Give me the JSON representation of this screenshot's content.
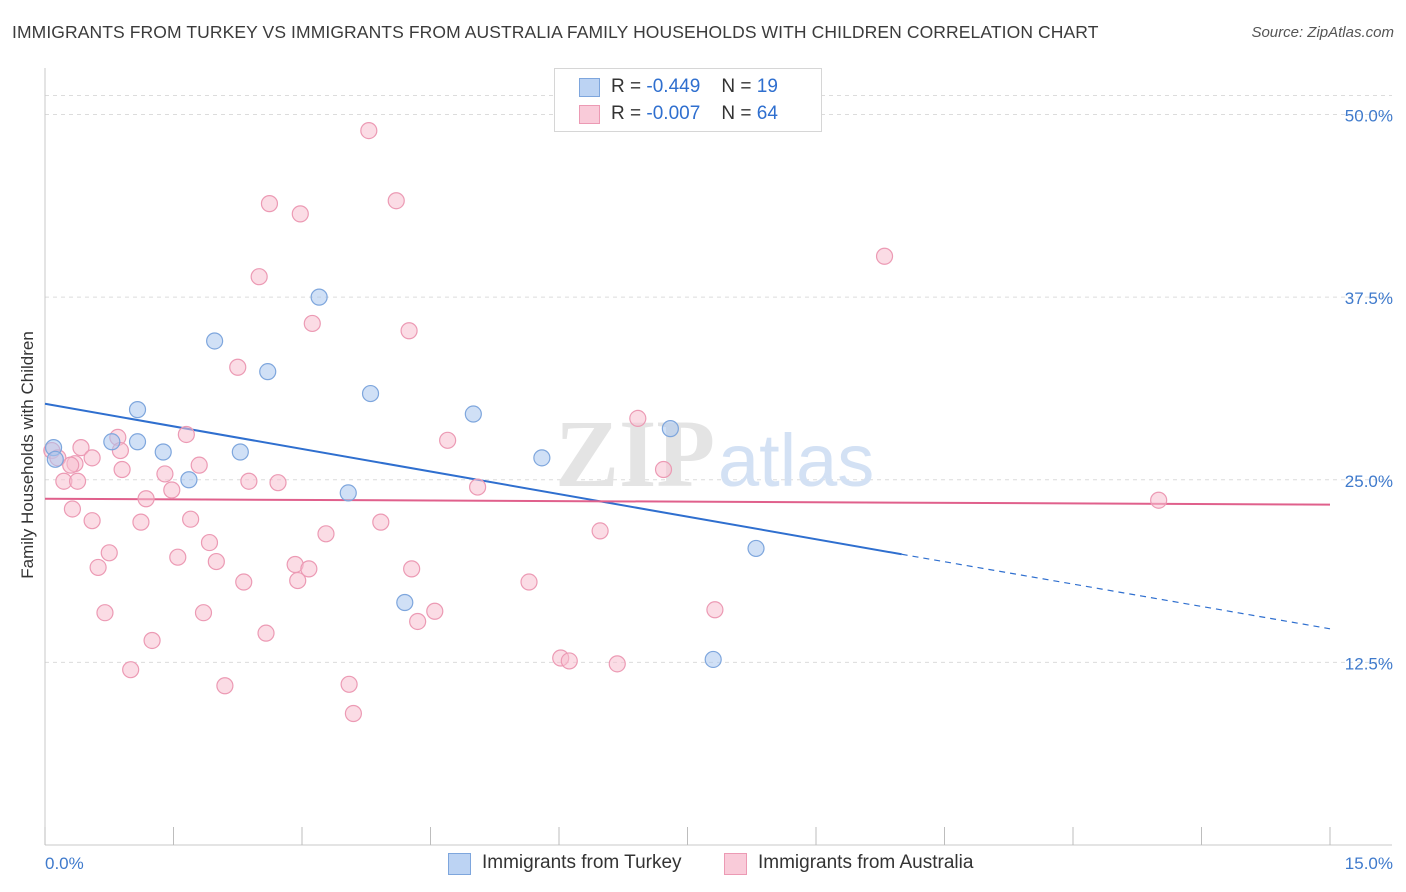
{
  "title": "IMMIGRANTS FROM TURKEY VS IMMIGRANTS FROM AUSTRALIA FAMILY HOUSEHOLDS WITH CHILDREN CORRELATION CHART",
  "source": "Source: ZipAtlas.com",
  "watermark": "ZIPatlas",
  "legend": {
    "r_label": "R =",
    "n_label": "N =",
    "turkey": {
      "r": "-0.449",
      "n": "19"
    },
    "australia": {
      "r": "-0.007",
      "n": "64"
    }
  },
  "chart_data": {
    "type": "scatter",
    "xlabel": "",
    "ylabel": "Family Households with Children",
    "xlim": [
      0,
      15
    ],
    "ylim": [
      0,
      52.5
    ],
    "x_tick_labels": [
      "0.0%",
      "15.0%"
    ],
    "y_ticks": [
      12.5,
      25.0,
      37.5,
      50.0
    ],
    "y_tick_labels": [
      "12.5%",
      "25.0%",
      "37.5%",
      "50.0%"
    ],
    "grid": true,
    "series": [
      {
        "name": "Immigrants from Turkey",
        "color": "#a9c6ee",
        "stroke": "#7ea6dd",
        "line_color": "#2f6fcf",
        "trend": {
          "x0": 0,
          "y0": 30.2,
          "x1": 10.0,
          "y1": 19.9,
          "dash_to_x": 15,
          "dash_to_y": 14.8
        },
        "points": [
          [
            0.1,
            27.2
          ],
          [
            0.78,
            27.6
          ],
          [
            1.08,
            27.6
          ],
          [
            1.08,
            29.8
          ],
          [
            1.38,
            26.9
          ],
          [
            1.68,
            25.0
          ],
          [
            1.98,
            34.5
          ],
          [
            2.28,
            26.9
          ],
          [
            2.6,
            32.4
          ],
          [
            3.2,
            37.5
          ],
          [
            3.54,
            24.1
          ],
          [
            3.8,
            30.9
          ],
          [
            4.2,
            16.6
          ],
          [
            5.0,
            29.5
          ],
          [
            5.8,
            26.5
          ],
          [
            7.3,
            28.5
          ],
          [
            7.8,
            12.7
          ],
          [
            8.3,
            20.3
          ],
          [
            0.12,
            26.4
          ]
        ]
      },
      {
        "name": "Immigrants from Australia",
        "color": "#f7bfd0",
        "stroke": "#ec9ab4",
        "line_color": "#e0608c",
        "trend": {
          "x0": 0,
          "y0": 23.7,
          "x1": 15,
          "y1": 23.3
        },
        "points": [
          [
            0.08,
            27.0
          ],
          [
            0.15,
            26.5
          ],
          [
            0.35,
            26.1
          ],
          [
            0.42,
            27.2
          ],
          [
            0.22,
            24.9
          ],
          [
            0.32,
            23.0
          ],
          [
            0.38,
            24.9
          ],
          [
            0.55,
            22.2
          ],
          [
            0.62,
            19.0
          ],
          [
            0.7,
            15.9
          ],
          [
            0.75,
            20.0
          ],
          [
            0.85,
            27.9
          ],
          [
            0.88,
            27.0
          ],
          [
            0.9,
            25.7
          ],
          [
            1.0,
            12.0
          ],
          [
            1.12,
            22.1
          ],
          [
            1.18,
            23.7
          ],
          [
            1.25,
            14.0
          ],
          [
            1.4,
            25.4
          ],
          [
            1.48,
            24.3
          ],
          [
            1.55,
            19.7
          ],
          [
            1.65,
            28.1
          ],
          [
            1.7,
            22.3
          ],
          [
            1.8,
            26.0
          ],
          [
            1.85,
            15.9
          ],
          [
            1.92,
            20.7
          ],
          [
            2.0,
            19.4
          ],
          [
            2.1,
            10.9
          ],
          [
            2.25,
            32.7
          ],
          [
            2.32,
            18.0
          ],
          [
            2.38,
            24.9
          ],
          [
            2.5,
            38.9
          ],
          [
            2.58,
            14.5
          ],
          [
            2.62,
            43.9
          ],
          [
            2.72,
            24.8
          ],
          [
            2.92,
            19.2
          ],
          [
            2.95,
            18.1
          ],
          [
            2.98,
            43.2
          ],
          [
            3.08,
            18.9
          ],
          [
            3.12,
            35.7
          ],
          [
            3.28,
            21.3
          ],
          [
            3.55,
            11.0
          ],
          [
            3.6,
            9.0
          ],
          [
            3.78,
            48.9
          ],
          [
            3.92,
            22.1
          ],
          [
            4.1,
            44.1
          ],
          [
            4.25,
            35.2
          ],
          [
            4.28,
            18.9
          ],
          [
            4.35,
            15.3
          ],
          [
            4.55,
            16.0
          ],
          [
            4.7,
            27.7
          ],
          [
            5.05,
            24.5
          ],
          [
            5.65,
            18.0
          ],
          [
            6.02,
            12.8
          ],
          [
            6.12,
            12.6
          ],
          [
            6.48,
            21.5
          ],
          [
            6.68,
            12.4
          ],
          [
            6.92,
            29.2
          ],
          [
            7.22,
            25.7
          ],
          [
            7.82,
            16.1
          ],
          [
            9.8,
            40.3
          ],
          [
            13.0,
            23.6
          ],
          [
            0.55,
            26.5
          ],
          [
            0.3,
            26.0
          ]
        ]
      }
    ]
  }
}
